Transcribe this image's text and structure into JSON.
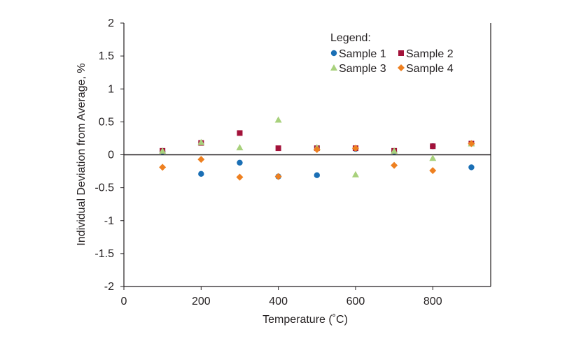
{
  "chart_data": {
    "type": "scatter",
    "xlabel": "Temperature (˚C)",
    "ylabel": "Individual Deviation from Average, %",
    "xlim": [
      0,
      950
    ],
    "ylim": [
      -2,
      2
    ],
    "x_ticks": [
      0,
      200,
      400,
      600,
      800
    ],
    "x_tick_labels": [
      "0",
      "200",
      "400",
      "600",
      "800"
    ],
    "y_ticks": [
      2,
      1.5,
      1,
      0.5,
      0,
      -0.5,
      -1,
      -1.5,
      -2
    ],
    "y_tick_labels": [
      "2",
      "1.5",
      "1",
      "0.5",
      "0",
      "-0.5",
      "-1",
      "-1.5",
      "-2"
    ],
    "grid": false,
    "legend": {
      "title": "Legend:",
      "placement": "top-right"
    },
    "series": [
      {
        "name": "Sample 1",
        "color": "#1a6fb5",
        "marker": "circle",
        "x": [
          100,
          200,
          300,
          400,
          500,
          600,
          700,
          800,
          900
        ],
        "y": [
          0.05,
          -0.29,
          -0.12,
          -0.33,
          -0.31,
          0.09,
          0.05,
          0.13,
          -0.19
        ]
      },
      {
        "name": "Sample 2",
        "color": "#a3123a",
        "marker": "square",
        "x": [
          100,
          200,
          300,
          400,
          500,
          600,
          700,
          800,
          900
        ],
        "y": [
          0.06,
          0.18,
          0.33,
          0.1,
          0.1,
          0.1,
          0.06,
          0.13,
          0.17
        ]
      },
      {
        "name": "Sample 3",
        "color": "#a8d17c",
        "marker": "triangle",
        "x": [
          100,
          200,
          300,
          400,
          500,
          600,
          700,
          800,
          900
        ],
        "y": [
          0.06,
          0.19,
          0.11,
          0.53,
          0.11,
          -0.3,
          0.06,
          -0.05,
          0.17
        ]
      },
      {
        "name": "Sample 4",
        "color": "#ee8020",
        "marker": "diamond",
        "x": [
          100,
          200,
          300,
          400,
          500,
          600,
          700,
          800,
          900
        ],
        "y": [
          -0.19,
          -0.07,
          -0.34,
          -0.33,
          0.08,
          0.1,
          -0.16,
          -0.24,
          0.17
        ]
      }
    ]
  }
}
